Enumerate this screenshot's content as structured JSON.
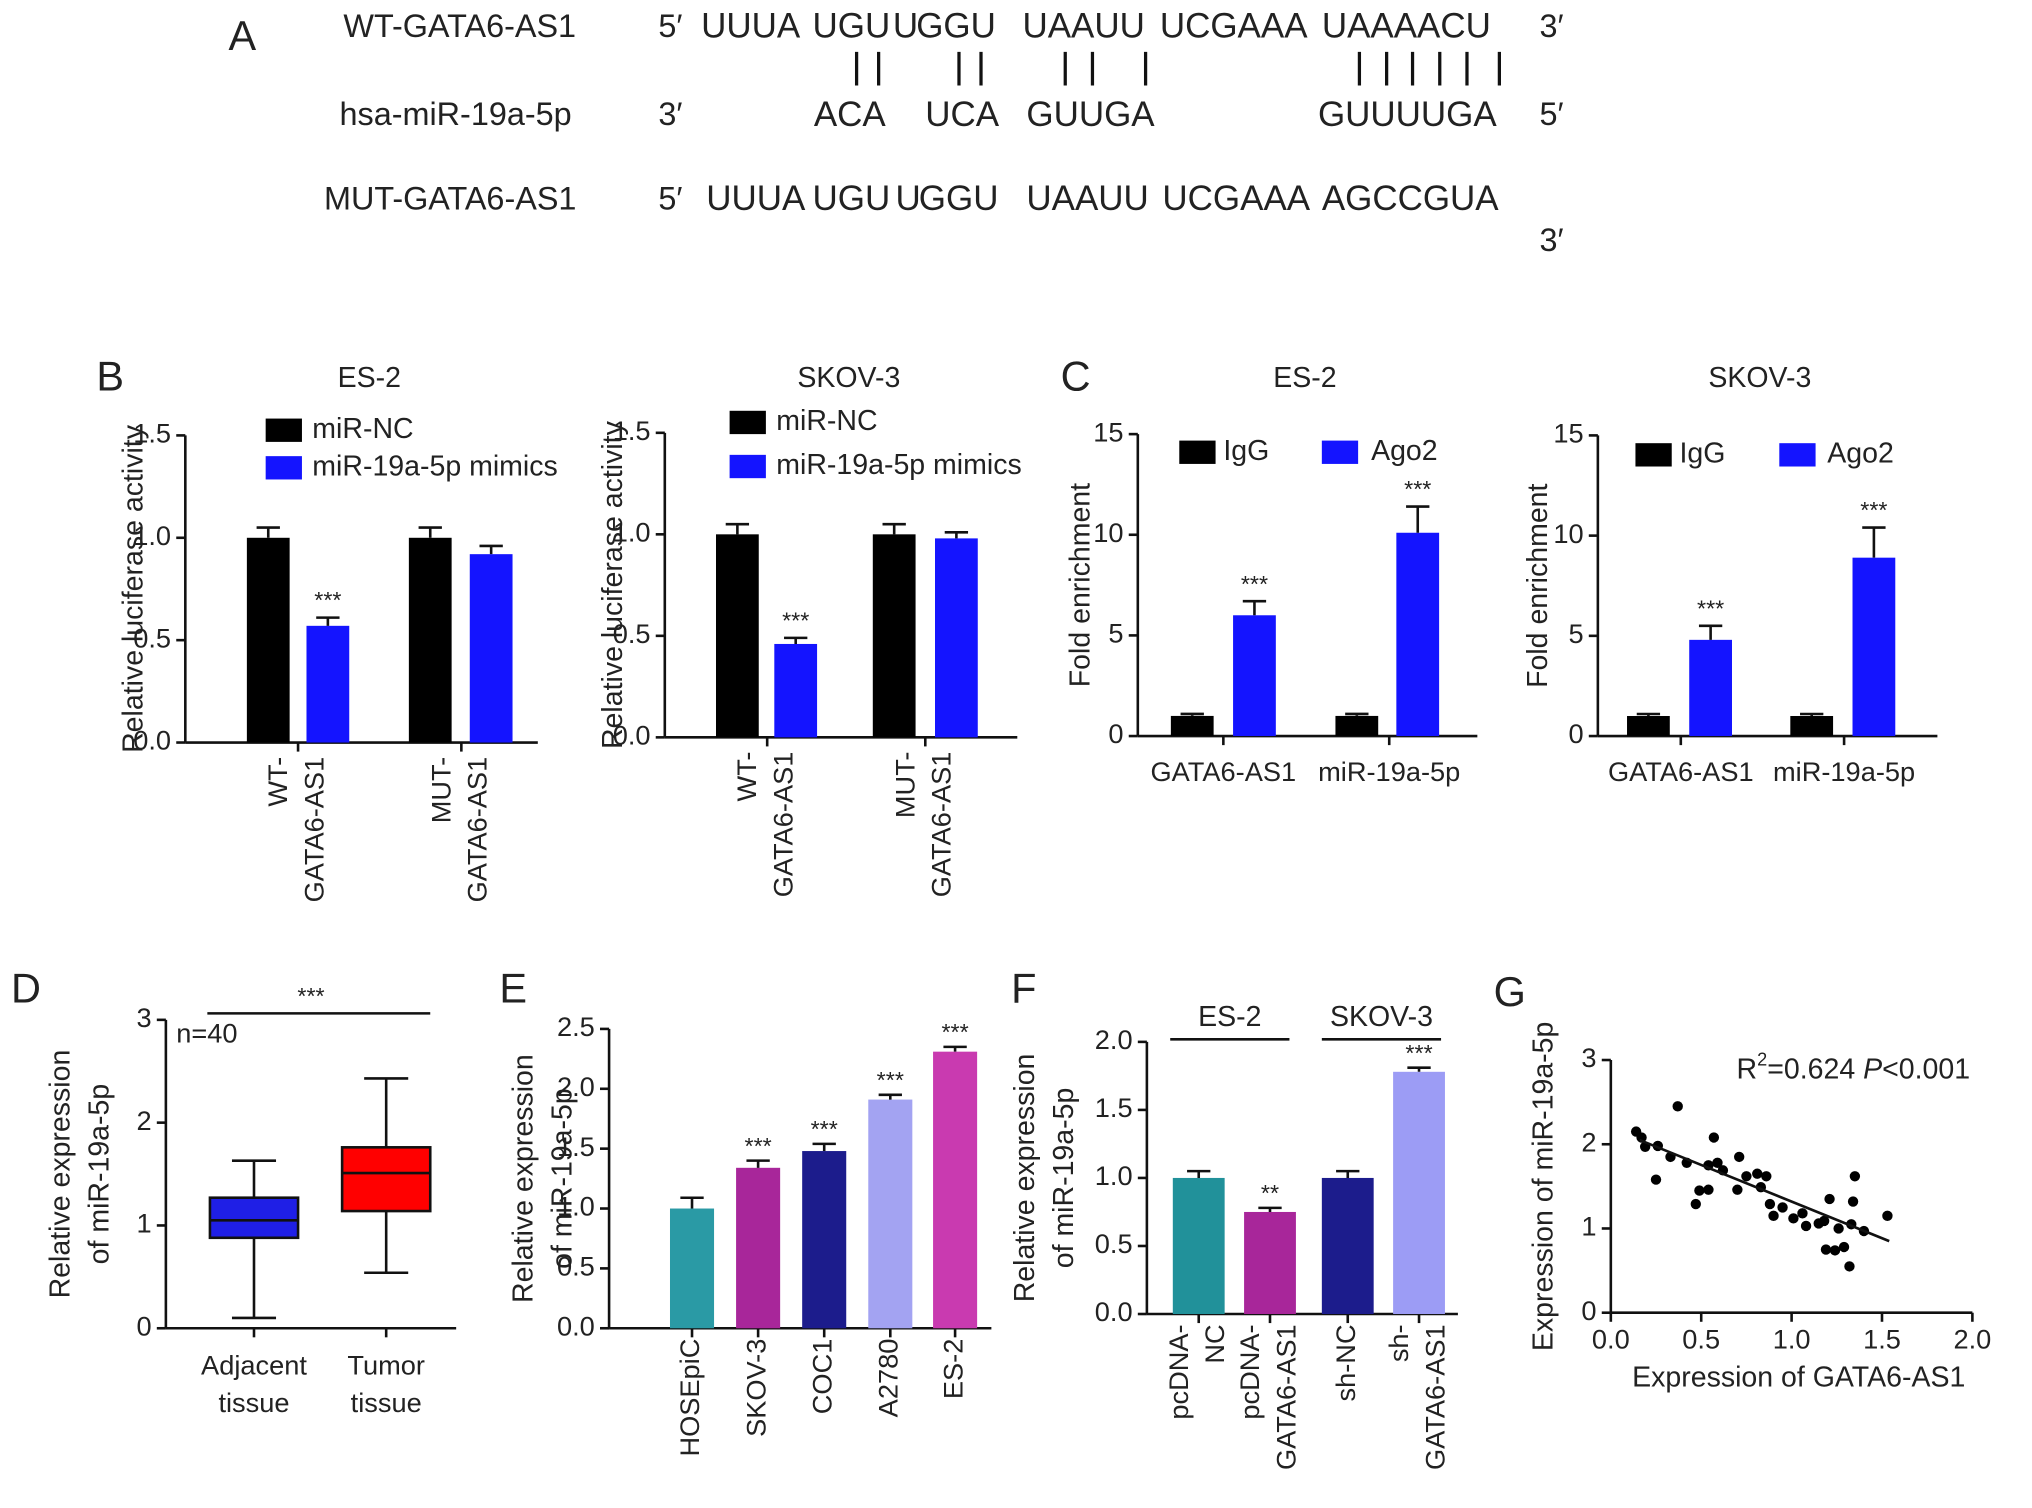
{
  "sequence_panel": {
    "panel": "A",
    "rows": [
      {
        "label": "WT-GATA6-AS1",
        "left": "5′",
        "right": "3′",
        "segments": [
          {
            "text": "UUUA",
            "color": "#e648c8"
          },
          {
            "text": "UGU",
            "color": "#1a1aa8"
          },
          {
            "text": "U",
            "color": "#e648c8"
          },
          {
            "text": "GGU",
            "color": "#1a1aa8"
          },
          {
            "text": "UAAUU",
            "color": "#1a1aa8"
          },
          {
            "text": "UCGAAA",
            "color": "#e648c8"
          },
          {
            "text": "UAAAACU",
            "color": "#1a1aa8"
          }
        ]
      },
      {
        "label": "hsa-miR-19a-5p",
        "left": "3′",
        "right": "5′",
        "segments": [
          {
            "text": "ACA",
            "color": "#1a1ad0"
          },
          {
            "text": "UCA",
            "color": "#1a1ad0"
          },
          {
            "text": "GUUGA",
            "color": "#1a1ad0"
          },
          {
            "text": "GUUUUGA",
            "color": "#1a1ad0"
          }
        ]
      },
      {
        "label": "MUT-GATA6-AS1",
        "left": "5′",
        "right": "3′",
        "segments": [
          {
            "text": "UUUA",
            "color": "#e648c8"
          },
          {
            "text": "UGU",
            "color": "#1a1aa8"
          },
          {
            "text": "U",
            "color": "#e648c8"
          },
          {
            "text": "GGU",
            "color": "#1a1aa8"
          },
          {
            "text": "UAAUU",
            "color": "#1a1aa8"
          },
          {
            "text": "UCGAAA",
            "color": "#e648c8"
          },
          {
            "text": "AGCCGUA",
            "color": "#ff1a1a"
          }
        ]
      }
    ]
  },
  "chart_data": [
    {
      "type": "bar",
      "panel": "B",
      "title": "ES-2",
      "ylabel": [
        "Relative luciferase activity"
      ],
      "categories": [
        [
          "WT-",
          "GATA6-AS1"
        ],
        [
          "MUT-",
          "GATA6-AS1"
        ]
      ],
      "series": [
        {
          "name": "miR-NC",
          "color": "#000000",
          "values": [
            1.0,
            1.0
          ],
          "errors": [
            0.05,
            0.05
          ],
          "significance": [
            null,
            null
          ]
        },
        {
          "name": "miR-19a-5p mimics",
          "color": "#1414ff",
          "values": [
            0.57,
            0.92
          ],
          "errors": [
            0.04,
            0.04
          ],
          "significance": [
            "***",
            null
          ]
        }
      ],
      "ylim": [
        0,
        1.5
      ],
      "yticks": [
        {
          "value": 0,
          "label": "0.0"
        },
        {
          "value": 0.5,
          "label": "0.5"
        },
        {
          "value": 1,
          "label": "1.0"
        },
        {
          "value": 1.5,
          "label": "1.5"
        }
      ],
      "legend": "upper-left"
    },
    {
      "type": "bar",
      "title": "SKOV-3",
      "ylabel": [
        "Relative luciferase activity"
      ],
      "categories": [
        [
          "WT-",
          "GATA6-AS1"
        ],
        [
          "MUT-",
          "GATA6-AS1"
        ]
      ],
      "series": [
        {
          "name": "miR-NC",
          "color": "#000000",
          "values": [
            1.0,
            1.0
          ],
          "errors": [
            0.05,
            0.05
          ],
          "significance": [
            null,
            null
          ]
        },
        {
          "name": "miR-19a-5p mimics",
          "color": "#1414ff",
          "values": [
            0.46,
            0.98
          ],
          "errors": [
            0.03,
            0.03
          ],
          "significance": [
            "***",
            null
          ]
        }
      ],
      "ylim": [
        0,
        1.5
      ],
      "yticks": [
        {
          "value": 0,
          "label": "0.0"
        },
        {
          "value": 0.5,
          "label": "0.5"
        },
        {
          "value": 1,
          "label": "1.0"
        },
        {
          "value": 1.5,
          "label": "1.5"
        }
      ],
      "legend": "upper-left"
    },
    {
      "type": "bar",
      "panel": "C",
      "title": "ES-2",
      "ylabel": [
        "Fold enrichment"
      ],
      "categories": [
        "GATA6-AS1",
        "miR-19a-5p"
      ],
      "series": [
        {
          "name": "IgG",
          "color": "#000000",
          "values": [
            1.0,
            1.0
          ],
          "errors": [
            0.1,
            0.1
          ],
          "significance": [
            null,
            null
          ]
        },
        {
          "name": "Ago2",
          "color": "#1414ff",
          "values": [
            6.0,
            10.1
          ],
          "errors": [
            0.7,
            1.3
          ],
          "significance": [
            "***",
            "***"
          ]
        }
      ],
      "ylim": [
        0,
        15
      ],
      "yticks": [
        0,
        5,
        10,
        15
      ],
      "legend": "upper-left"
    },
    {
      "type": "bar",
      "title": "SKOV-3",
      "ylabel": [
        "Fold enrichment"
      ],
      "categories": [
        "GATA6-AS1",
        "miR-19a-5p"
      ],
      "series": [
        {
          "name": "IgG",
          "color": "#000000",
          "values": [
            1.0,
            1.0
          ],
          "errors": [
            0.1,
            0.1
          ],
          "significance": [
            null,
            null
          ]
        },
        {
          "name": "Ago2",
          "color": "#1414ff",
          "values": [
            4.8,
            8.9
          ],
          "errors": [
            0.7,
            1.5
          ],
          "significance": [
            "***",
            "***"
          ]
        }
      ],
      "ylim": [
        0,
        15
      ],
      "yticks": [
        0,
        5,
        10,
        15
      ],
      "legend": "upper-left"
    },
    {
      "type": "box",
      "panel": "D",
      "ylabel": [
        "Relative expression",
        "of miR-19a-5p"
      ],
      "categories": [
        [
          "Adjacent",
          "tissue"
        ],
        [
          "Tumor",
          "tissue"
        ]
      ],
      "boxes": [
        {
          "min": 0.1,
          "q1": 0.88,
          "median": 1.05,
          "q3": 1.27,
          "max": 1.63,
          "color": "#1f1fe6"
        },
        {
          "min": 0.54,
          "q1": 1.14,
          "median": 1.51,
          "q3": 1.76,
          "max": 2.43,
          "color": "#ff0000"
        }
      ],
      "annotation": "n=40",
      "significance": "***",
      "ylim": [
        0,
        3
      ],
      "yticks": [
        0,
        1,
        2,
        3
      ]
    },
    {
      "type": "bar",
      "panel": "E",
      "ylabel": [
        "Relative expression",
        "of miR-19a-5p"
      ],
      "categories": [
        "HOSEpiC",
        "SKOV-3",
        "COC1",
        "A2780",
        "ES-2"
      ],
      "values": [
        1.0,
        1.34,
        1.48,
        1.91,
        2.31
      ],
      "errors": [
        0.09,
        0.06,
        0.06,
        0.04,
        0.04
      ],
      "colors": [
        "#2a9aa5",
        "#a8269a",
        "#1c1c8c",
        "#a3a3f2",
        "#c93ab0"
      ],
      "significance": [
        null,
        "***",
        "***",
        "***",
        "***"
      ],
      "ylim": [
        0,
        2.5
      ],
      "yticks": [
        {
          "value": 0,
          "label": "0.0"
        },
        {
          "value": 0.5,
          "label": "0.5"
        },
        {
          "value": 1,
          "label": "1.0"
        },
        {
          "value": 1.5,
          "label": "1.5"
        },
        {
          "value": 2,
          "label": "2.0"
        },
        {
          "value": 2.5,
          "label": "2.5"
        }
      ]
    },
    {
      "type": "bar",
      "panel": "F",
      "ylabel": [
        "Relative expression",
        "of miR-19a-5p"
      ],
      "categories": [
        [
          "pcDNA-",
          "NC"
        ],
        [
          "pcDNA-",
          "GATA6-AS1"
        ],
        [
          "sh-NC"
        ],
        [
          "sh-",
          "GATA6-AS1"
        ]
      ],
      "groups": [
        {
          "label": "ES-2"
        },
        {
          "label": "SKOV-3"
        }
      ],
      "values": [
        1.0,
        0.75,
        1.0,
        1.78
      ],
      "errors": [
        0.05,
        0.03,
        0.05,
        0.03
      ],
      "colors": [
        "#21919a",
        "#a8269a",
        "#1c1c8c",
        "#9c9cf5"
      ],
      "significance": [
        null,
        "**",
        null,
        "***"
      ],
      "ylim": [
        0,
        2
      ],
      "yticks": [
        {
          "value": 0,
          "label": "0.0"
        },
        {
          "value": 0.5,
          "label": "0.5"
        },
        {
          "value": 1,
          "label": "1.0"
        },
        {
          "value": 1.5,
          "label": "1.5"
        },
        {
          "value": 2,
          "label": "2.0"
        }
      ]
    },
    {
      "type": "scatter",
      "panel": "G",
      "xlabel": "Expression of GATA6-AS1",
      "ylabel": [
        "Expression of miR-19a-5p"
      ],
      "annotation": [
        "R",
        "2",
        "=0.624 ",
        "P",
        "<0.001"
      ],
      "color": "#000000",
      "x": [
        0.14,
        0.17,
        0.19,
        0.26,
        0.25,
        0.33,
        0.37,
        0.42,
        0.47,
        0.49,
        0.54,
        0.54,
        0.57,
        0.59,
        0.62,
        0.7,
        0.71,
        0.75,
        0.81,
        0.83,
        0.86,
        0.88,
        0.9,
        0.95,
        1.01,
        1.06,
        1.15,
        1.18,
        1.21,
        1.19,
        1.24,
        1.29,
        1.32,
        1.35,
        1.34,
        1.4,
        1.53,
        1.08,
        1.33,
        1.26
      ],
      "values": [
        2.15,
        2.08,
        1.97,
        1.98,
        1.58,
        1.85,
        2.45,
        1.78,
        1.29,
        1.45,
        1.46,
        1.75,
        2.08,
        1.78,
        1.69,
        1.46,
        1.85,
        1.62,
        1.65,
        1.49,
        1.62,
        1.29,
        1.15,
        1.25,
        1.12,
        1.18,
        1.06,
        1.09,
        1.35,
        0.75,
        0.74,
        0.78,
        0.55,
        1.62,
        1.32,
        0.97,
        1.15,
        1.03,
        1.05,
        1.0
      ],
      "fit_line": {
        "x": [
          0.16,
          1.54
        ],
        "y": [
          2.05,
          0.85
        ]
      },
      "xlim": [
        0,
        2
      ],
      "xticks": [
        {
          "value": 0,
          "label": "0.0"
        },
        {
          "value": 0.5,
          "label": "0.5"
        },
        {
          "value": 1,
          "label": "1.0"
        },
        {
          "value": 1.5,
          "label": "1.5"
        },
        {
          "value": 2,
          "label": "2.0"
        }
      ],
      "ylim": [
        0,
        3
      ],
      "yticks": [
        0,
        1,
        2,
        3
      ]
    }
  ]
}
